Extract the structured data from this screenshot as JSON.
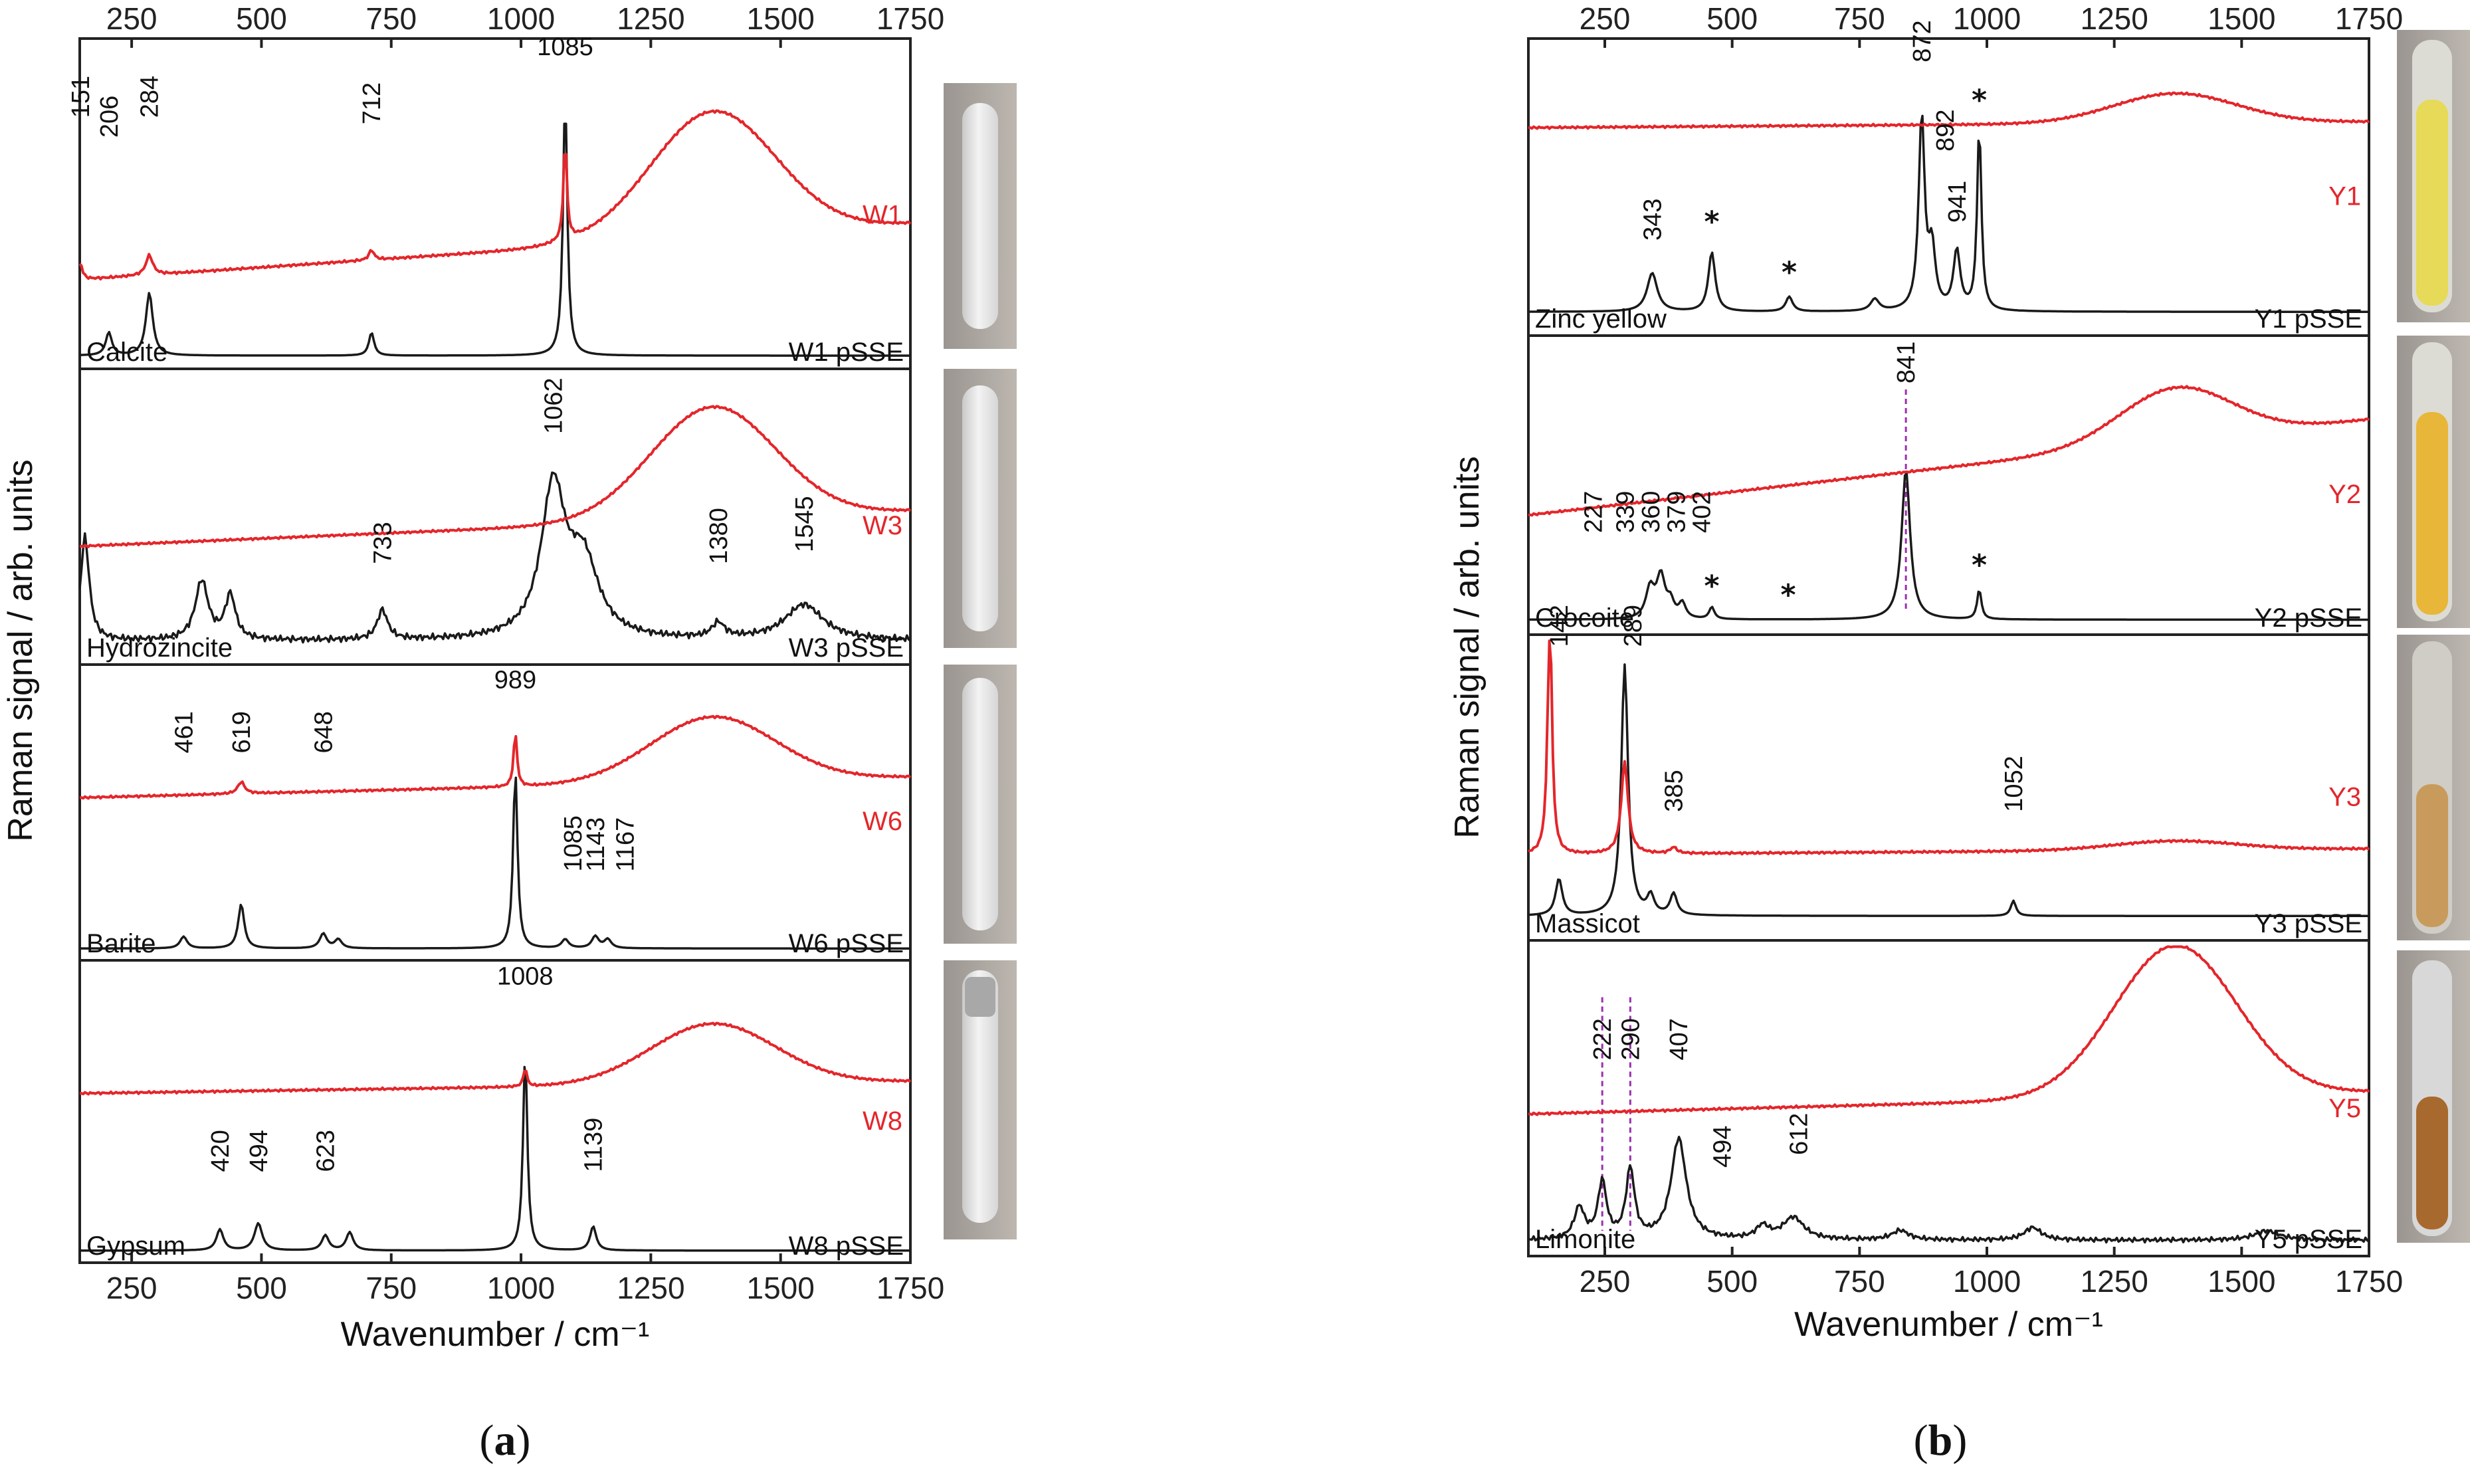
{
  "figure": {
    "label_a": "a",
    "label_b": "b"
  },
  "colors": {
    "sample": "#e3262b",
    "reference": "#1a1a1a",
    "axis": "#222222",
    "marker": "#9b2fae"
  },
  "chart_data": [
    {
      "id": "a",
      "type": "line",
      "title": "",
      "xlabel": "Wavenumber / cm⁻¹",
      "ylabel": "Raman signal / arb. units",
      "xlim": [
        150,
        1750
      ],
      "xticks_top": [
        250,
        500,
        750,
        1000,
        1250,
        1500,
        1750
      ],
      "xticks_bottom": [
        250,
        500,
        750,
        1000,
        1250,
        1500,
        1750
      ],
      "panels": [
        {
          "sample_label": "W1",
          "reference_label": "Calcite",
          "pSSE_label": "W1 pSSE",
          "sample_series": {
            "baseline_start": 0.27,
            "baseline_end": 0.44,
            "broad_center": 1370,
            "broad_height": 0.38,
            "broad_width": 120,
            "peaks": [
              {
                "x": 151,
                "h": 0.05,
                "w": 5
              },
              {
                "x": 284,
                "h": 0.06,
                "w": 8
              },
              {
                "x": 712,
                "h": 0.03,
                "w": 6
              },
              {
                "x": 1085,
                "h": 0.3,
                "w": 4
              }
            ]
          },
          "reference_series": {
            "baseline": 0.04,
            "peaks": [
              {
                "x": 206,
                "h": 0.07,
                "w": 7
              },
              {
                "x": 284,
                "h": 0.19,
                "w": 8
              },
              {
                "x": 712,
                "h": 0.07,
                "w": 6
              },
              {
                "x": 1085,
                "h": 0.78,
                "w": 5
              }
            ]
          },
          "annotations": [
            {
              "text": "151",
              "x": 151,
              "y": 0.76
            },
            {
              "text": "206",
              "x": 206,
              "y": 0.7
            },
            {
              "text": "284",
              "x": 284,
              "y": 0.76
            },
            {
              "text": "712",
              "x": 712,
              "y": 0.74
            },
            {
              "text": "1085",
              "x": 1085,
              "y": 0.95,
              "horizontal": true
            }
          ]
        },
        {
          "sample_label": "W3",
          "reference_label": "Hydrozincite",
          "pSSE_label": "W3 pSSE",
          "sample_series": {
            "baseline_start": 0.4,
            "baseline_end": 0.52,
            "broad_center": 1370,
            "broad_height": 0.38,
            "broad_width": 120,
            "peaks": []
          },
          "reference_series": {
            "baseline": 0.08,
            "noise": 0.012,
            "peaks": [
              {
                "x": 160,
                "h": 0.35,
                "w": 10
              },
              {
                "x": 385,
                "h": 0.2,
                "w": 15
              },
              {
                "x": 440,
                "h": 0.15,
                "w": 12
              },
              {
                "x": 733,
                "h": 0.1,
                "w": 12
              },
              {
                "x": 1062,
                "h": 0.5,
                "w": 28
              },
              {
                "x": 1120,
                "h": 0.25,
                "w": 35
              },
              {
                "x": 1380,
                "h": 0.05,
                "w": 15
              },
              {
                "x": 1545,
                "h": 0.12,
                "w": 45
              }
            ]
          },
          "annotations": [
            {
              "text": "1062",
              "x": 1062,
              "y": 0.78
            },
            {
              "text": "733",
              "x": 733,
              "y": 0.34
            },
            {
              "text": "1380",
              "x": 1380,
              "y": 0.34
            },
            {
              "text": "1545",
              "x": 1545,
              "y": 0.38
            }
          ]
        },
        {
          "sample_label": "W6",
          "reference_label": "Barite",
          "pSSE_label": "W6 pSSE",
          "sample_series": {
            "baseline_start": 0.55,
            "baseline_end": 0.62,
            "broad_center": 1370,
            "broad_height": 0.22,
            "broad_width": 120,
            "peaks": [
              {
                "x": 461,
                "h": 0.04,
                "w": 8
              },
              {
                "x": 989,
                "h": 0.18,
                "w": 4
              }
            ]
          },
          "reference_series": {
            "baseline": 0.04,
            "peaks": [
              {
                "x": 350,
                "h": 0.04,
                "w": 8
              },
              {
                "x": 461,
                "h": 0.15,
                "w": 7
              },
              {
                "x": 619,
                "h": 0.05,
                "w": 8
              },
              {
                "x": 648,
                "h": 0.03,
                "w": 8
              },
              {
                "x": 989,
                "h": 0.6,
                "w": 5
              },
              {
                "x": 1085,
                "h": 0.03,
                "w": 8
              },
              {
                "x": 1143,
                "h": 0.04,
                "w": 8
              },
              {
                "x": 1167,
                "h": 0.03,
                "w": 8
              }
            ]
          },
          "annotations": [
            {
              "text": "461",
              "x": 350,
              "y": 0.7
            },
            {
              "text": "619",
              "x": 461,
              "y": 0.7
            },
            {
              "text": "648",
              "x": 619,
              "y": 0.7
            },
            {
              "text": "989",
              "x": 989,
              "y": 0.92,
              "horizontal": true
            },
            {
              "text": "1085",
              "x": 1100,
              "y": 0.3
            },
            {
              "text": "1143",
              "x": 1143,
              "y": 0.3
            },
            {
              "text": "1167",
              "x": 1200,
              "y": 0.3
            }
          ]
        },
        {
          "sample_label": "W8",
          "reference_label": "Gypsum",
          "pSSE_label": "W8 pSSE",
          "sample_series": {
            "baseline_start": 0.56,
            "baseline_end": 0.6,
            "broad_center": 1370,
            "broad_height": 0.2,
            "broad_width": 120,
            "peaks": [
              {
                "x": 1008,
                "h": 0.06,
                "w": 4
              }
            ]
          },
          "reference_series": {
            "baseline": 0.04,
            "peaks": [
              {
                "x": 420,
                "h": 0.07,
                "w": 8
              },
              {
                "x": 494,
                "h": 0.09,
                "w": 9
              },
              {
                "x": 623,
                "h": 0.05,
                "w": 8
              },
              {
                "x": 670,
                "h": 0.06,
                "w": 8
              },
              {
                "x": 1008,
                "h": 0.65,
                "w": 5
              },
              {
                "x": 1139,
                "h": 0.08,
                "w": 7
              }
            ]
          },
          "annotations": [
            {
              "text": "1008",
              "x": 1008,
              "y": 0.92,
              "horizontal": true
            },
            {
              "text": "420",
              "x": 420,
              "y": 0.3
            },
            {
              "text": "494",
              "x": 494,
              "y": 0.3
            },
            {
              "text": "623",
              "x": 623,
              "y": 0.3
            },
            {
              "text": "1139",
              "x": 1139,
              "y": 0.3
            }
          ]
        }
      ]
    },
    {
      "id": "b",
      "type": "line",
      "title": "",
      "xlabel": "Wavenumber / cm⁻¹",
      "ylabel": "Raman signal / arb. units",
      "xlim": [
        100,
        1750
      ],
      "xticks_top": [
        250,
        500,
        750,
        1000,
        1250,
        1500,
        1750
      ],
      "xticks_bottom": [
        250,
        500,
        750,
        1000,
        1250,
        1500,
        1750
      ],
      "panels": [
        {
          "sample_label": "Y1",
          "reference_label": "Zinc yellow",
          "pSSE_label": "Y1 pSSE",
          "sample_series": {
            "baseline_start": 0.7,
            "baseline_end": 0.72,
            "broad_center": 1370,
            "broad_height": 0.1,
            "broad_width": 120,
            "peaks": []
          },
          "reference_series": {
            "baseline": 0.08,
            "peaks": [
              {
                "x": 343,
                "h": 0.13,
                "w": 12
              },
              {
                "x": 460,
                "h": 0.2,
                "w": 8
              },
              {
                "x": 612,
                "h": 0.05,
                "w": 8
              },
              {
                "x": 780,
                "h": 0.04,
                "w": 10
              },
              {
                "x": 872,
                "h": 0.65,
                "w": 7
              },
              {
                "x": 892,
                "h": 0.2,
                "w": 8
              },
              {
                "x": 941,
                "h": 0.2,
                "w": 8
              },
              {
                "x": 985,
                "h": 0.62,
                "w": 5
              }
            ]
          },
          "annotations": [
            {
              "text": "343",
              "x": 343,
              "y": 0.32
            },
            {
              "text": "872",
              "x": 872,
              "y": 0.92
            },
            {
              "text": "892",
              "x": 918,
              "y": 0.62
            },
            {
              "text": "941",
              "x": 941,
              "y": 0.38
            }
          ],
          "stars": [
            {
              "x": 460,
              "y": 0.35
            },
            {
              "x": 612,
              "y": 0.18
            },
            {
              "x": 985,
              "y": 0.76
            }
          ]
        },
        {
          "sample_label": "Y2",
          "reference_label": "Crocoite",
          "pSSE_label": "Y2 pSSE",
          "sample_series": {
            "baseline_start": 0.4,
            "baseline_end": 0.72,
            "broad_center": 1370,
            "broad_height": 0.18,
            "broad_width": 110,
            "peaks": []
          },
          "reference_series": {
            "baseline": 0.05,
            "peaks": [
              {
                "x": 339,
                "h": 0.1,
                "w": 10
              },
              {
                "x": 360,
                "h": 0.14,
                "w": 10
              },
              {
                "x": 379,
                "h": 0.05,
                "w": 8
              },
              {
                "x": 402,
                "h": 0.05,
                "w": 8
              },
              {
                "x": 460,
                "h": 0.04,
                "w": 6
              },
              {
                "x": 841,
                "h": 0.5,
                "w": 10
              },
              {
                "x": 985,
                "h": 0.1,
                "w": 5
              }
            ]
          },
          "annotations": [
            {
              "text": "227",
              "x": 227,
              "y": 0.34
            },
            {
              "text": "339",
              "x": 290,
              "y": 0.34
            },
            {
              "text": "360",
              "x": 340,
              "y": 0.34
            },
            {
              "text": "379",
              "x": 390,
              "y": 0.34
            },
            {
              "text": "402",
              "x": 440,
              "y": 0.34
            },
            {
              "text": "841",
              "x": 841,
              "y": 0.84
            }
          ],
          "stars": [
            {
              "x": 460,
              "y": 0.13
            },
            {
              "x": 610,
              "y": 0.1
            },
            {
              "x": 985,
              "y": 0.2
            }
          ],
          "markers": [
            841
          ]
        },
        {
          "sample_label": "Y3",
          "reference_label": "Massicot",
          "pSSE_label": "Y3 pSSE",
          "sample_series": {
            "baseline_start": 0.28,
            "baseline_end": 0.3,
            "broad_center": 1370,
            "broad_height": 0.03,
            "broad_width": 120,
            "peaks": [
              {
                "x": 142,
                "h": 0.8,
                "w": 5
              },
              {
                "x": 289,
                "h": 0.3,
                "w": 8
              },
              {
                "x": 385,
                "h": 0.02,
                "w": 8
              }
            ]
          },
          "reference_series": {
            "baseline": 0.08,
            "peaks": [
              {
                "x": 160,
                "h": 0.12,
                "w": 8
              },
              {
                "x": 289,
                "h": 0.82,
                "w": 8
              },
              {
                "x": 340,
                "h": 0.06,
                "w": 8
              },
              {
                "x": 385,
                "h": 0.07,
                "w": 8
              },
              {
                "x": 1052,
                "h": 0.05,
                "w": 6
              }
            ]
          },
          "annotations": [
            {
              "text": "142",
              "x": 160,
              "y": 0.96
            },
            {
              "text": "289",
              "x": 305,
              "y": 0.96
            },
            {
              "text": "385",
              "x": 385,
              "y": 0.42
            },
            {
              "text": "1052",
              "x": 1052,
              "y": 0.42
            }
          ]
        },
        {
          "sample_label": "Y5",
          "reference_label": "Limonite",
          "pSSE_label": "Y5 pSSE",
          "sample_series": {
            "baseline_start": 0.45,
            "baseline_end": 0.52,
            "broad_center": 1370,
            "broad_height": 0.48,
            "broad_width": 120,
            "peaks": []
          },
          "reference_series": {
            "baseline": 0.05,
            "noise": 0.008,
            "peaks": [
              {
                "x": 200,
                "h": 0.1,
                "w": 12
              },
              {
                "x": 245,
                "h": 0.18,
                "w": 10
              },
              {
                "x": 300,
                "h": 0.22,
                "w": 10
              },
              {
                "x": 395,
                "h": 0.32,
                "w": 18
              },
              {
                "x": 560,
                "h": 0.04,
                "w": 15
              },
              {
                "x": 620,
                "h": 0.07,
                "w": 25
              },
              {
                "x": 830,
                "h": 0.03,
                "w": 20
              },
              {
                "x": 1090,
                "h": 0.04,
                "w": 20
              },
              {
                "x": 1550,
                "h": 0.03,
                "w": 30
              }
            ]
          },
          "annotations": [
            {
              "text": "222",
              "x": 245,
              "y": 0.62
            },
            {
              "text": "290",
              "x": 300,
              "y": 0.62
            },
            {
              "text": "407",
              "x": 395,
              "y": 0.62
            },
            {
              "text": "494",
              "x": 480,
              "y": 0.28
            },
            {
              "text": "612",
              "x": 630,
              "y": 0.32
            }
          ],
          "markers": [
            245,
            300
          ]
        }
      ]
    }
  ]
}
